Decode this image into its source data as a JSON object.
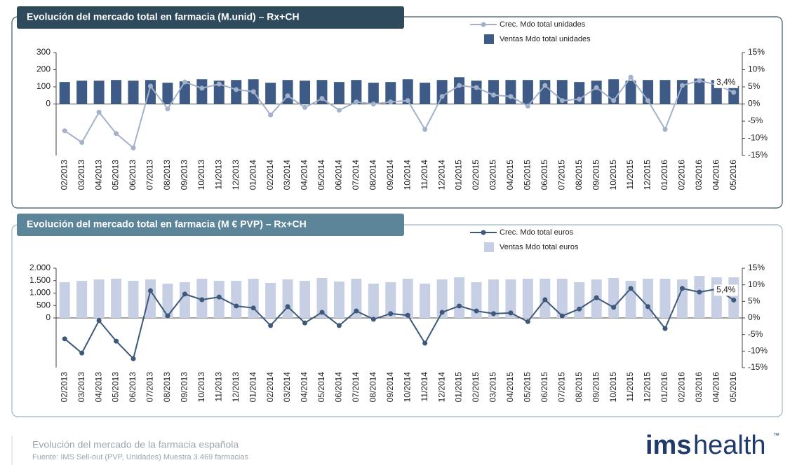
{
  "chart_data": [
    {
      "type": "bar-line",
      "title": "Evolución del mercado total en farmacia (M.unid) – Rx+CH",
      "categories": [
        "02/2013",
        "03/2013",
        "04/2013",
        "05/2013",
        "06/2013",
        "07/2013",
        "08/2013",
        "09/2013",
        "10/2013",
        "11/2013",
        "12/2013",
        "01/2014",
        "02/2014",
        "03/2014",
        "04/2014",
        "05/2014",
        "06/2014",
        "07/2014",
        "08/2014",
        "09/2014",
        "10/2014",
        "11/2014",
        "12/2014",
        "01/2015",
        "02/2015",
        "03/2015",
        "04/2015",
        "05/2015",
        "06/2015",
        "07/2015",
        "08/2015",
        "09/2015",
        "10/2015",
        "11/2015",
        "12/2015",
        "01/2016",
        "02/2016",
        "03/2016",
        "04/2016",
        "05/2016"
      ],
      "series": [
        {
          "name": "Crec. Mdo total unidades",
          "type": "line",
          "axis": "y2",
          "color": "#a3b1c9",
          "values": [
            -7.8,
            -11.2,
            -2.4,
            -8.6,
            -12.8,
            5.2,
            -1.4,
            6.4,
            4.6,
            5.8,
            4.2,
            3.6,
            -3.2,
            2.4,
            -1.0,
            1.6,
            -1.8,
            0.6,
            0,
            0.6,
            1.0,
            -7.4,
            2.2,
            5.4,
            4.8,
            2.6,
            2.2,
            -0.6,
            5.4,
            1.0,
            1.4,
            4.8,
            1.0,
            7.8,
            1.0,
            -7.4,
            5.4,
            6.8,
            5.6,
            3.4
          ],
          "value_labels": [
            null,
            null,
            null,
            null,
            null,
            null,
            null,
            null,
            null,
            null,
            null,
            null,
            null,
            null,
            null,
            null,
            null,
            null,
            null,
            null,
            null,
            null,
            null,
            null,
            null,
            null,
            null,
            null,
            null,
            null,
            null,
            null,
            null,
            null,
            null,
            null,
            null,
            null,
            null,
            "3,4%"
          ]
        },
        {
          "name": "Ventas Mdo total unidades",
          "type": "bar",
          "axis": "y",
          "color": "#3e5a86",
          "values": [
            128,
            136,
            136,
            140,
            136,
            140,
            124,
            132,
            144,
            136,
            140,
            144,
            124,
            140,
            136,
            140,
            128,
            140,
            124,
            128,
            144,
            124,
            140,
            156,
            136,
            140,
            140,
            140,
            140,
            140,
            128,
            136,
            144,
            136,
            140,
            140,
            140,
            148,
            140,
            104
          ]
        }
      ],
      "ylim": [
        -300,
        300
      ],
      "yticks": [
        0,
        100,
        200,
        300
      ],
      "y2lim": [
        -15,
        15
      ],
      "y2ticks": [
        {
          "value": 15,
          "label": "15%"
        },
        {
          "value": 10,
          "label": "10%"
        },
        {
          "value": 5,
          "label": "5%"
        },
        {
          "value": 0,
          "label": "0%"
        },
        {
          "value": -5,
          "label": "-5%"
        },
        {
          "value": -10,
          "label": "-10%"
        },
        {
          "value": -15,
          "label": "-15%"
        }
      ],
      "title_color": "#2e4a5b"
    },
    {
      "type": "bar-line",
      "title": "Evolución del mercado total en farmacia (M € PVP) – Rx+CH",
      "categories": [
        "02/2013",
        "03/2013",
        "04/2013",
        "05/2013",
        "06/2013",
        "07/2013",
        "08/2013",
        "09/2013",
        "10/2013",
        "11/2013",
        "12/2013",
        "01/2014",
        "02/2014",
        "03/2014",
        "04/2014",
        "05/2014",
        "06/2014",
        "07/2014",
        "08/2014",
        "09/2014",
        "10/2014",
        "11/2014",
        "12/2014",
        "01/2015",
        "02/2015",
        "03/2015",
        "04/2015",
        "05/2015",
        "06/2015",
        "07/2015",
        "08/2015",
        "09/2015",
        "10/2015",
        "11/2015",
        "12/2015",
        "01/2016",
        "02/2016",
        "03/2016",
        "04/2016",
        "05/2016"
      ],
      "series": [
        {
          "name": "Crec. Mdo total euros",
          "type": "line",
          "axis": "y2",
          "color": "#3d5878",
          "values": [
            -6.3,
            -10.6,
            -0.8,
            -7.0,
            -12.3,
            8.2,
            0.6,
            7.2,
            5.5,
            6.3,
            3.6,
            3.0,
            -2.3,
            3.4,
            -1.5,
            1.7,
            -2.3,
            2.1,
            -0.4,
            1.3,
            0.8,
            -7.6,
            1.7,
            3.6,
            2.1,
            1.3,
            1.5,
            -1.1,
            5.5,
            0.6,
            2.7,
            6.1,
            3.2,
            8.9,
            3.4,
            -3.2,
            8.9,
            7.8,
            8.7,
            5.4
          ],
          "value_labels": [
            null,
            null,
            null,
            null,
            null,
            null,
            null,
            null,
            null,
            null,
            null,
            null,
            null,
            null,
            null,
            null,
            null,
            null,
            null,
            null,
            null,
            null,
            null,
            null,
            null,
            null,
            null,
            null,
            null,
            null,
            null,
            null,
            null,
            null,
            null,
            null,
            null,
            null,
            null,
            "5,4%"
          ]
        },
        {
          "name": "Ventas Mdo total euros",
          "type": "bar",
          "axis": "y",
          "color": "#c6cfe4",
          "values": [
            1437,
            1493,
            1549,
            1577,
            1493,
            1549,
            1380,
            1437,
            1577,
            1493,
            1493,
            1577,
            1408,
            1549,
            1493,
            1606,
            1465,
            1577,
            1380,
            1437,
            1577,
            1380,
            1549,
            1634,
            1437,
            1549,
            1549,
            1577,
            1577,
            1577,
            1437,
            1549,
            1606,
            1493,
            1577,
            1577,
            1549,
            1690,
            1634,
            1634
          ]
        }
      ],
      "ylim": [
        -2000,
        2000
      ],
      "yticks": [
        0,
        500,
        {
          "value": 1000,
          "label": "1.000"
        },
        {
          "value": 1500,
          "label": "1.500"
        },
        {
          "value": 2000,
          "label": "2.000"
        }
      ],
      "y2lim": [
        -15,
        15
      ],
      "y2ticks": [
        {
          "value": 15,
          "label": "15%"
        },
        {
          "value": 10,
          "label": "10%"
        },
        {
          "value": 5,
          "label": "5%"
        },
        {
          "value": 0,
          "label": "0%"
        },
        {
          "value": -5,
          "label": "-5%"
        },
        {
          "value": -10,
          "label": "-10%"
        },
        {
          "value": -15,
          "label": "-15%"
        }
      ],
      "title_color": "#5d8599"
    }
  ],
  "footer": {
    "title": "Evolución del mercado de la farmacia española",
    "source": "Fuente: IMS Sell-out  (PVP, Unidades) Muestra 3.469  farmacias"
  },
  "logo": {
    "ims": "ims",
    "health": "health",
    "tm": "™"
  }
}
